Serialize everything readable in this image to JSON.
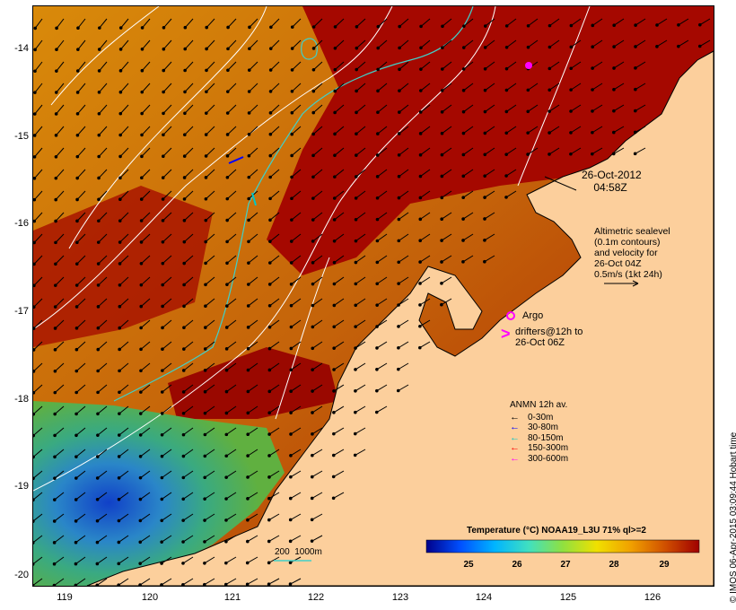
{
  "map": {
    "lat_ticks": [
      "-14",
      "-15",
      "-16",
      "-17",
      "-18",
      "-19",
      "-20"
    ],
    "lon_ticks": [
      "119",
      "120",
      "121",
      "122",
      "123",
      "124",
      "125",
      "126"
    ],
    "date_label": "26-Oct-2012\n    04:58Z",
    "altimetry_text": "Altimetric sealevel\n(0.1m contours)\nand velocity for\n26-Oct 04Z\n0.5m/s (1kt 24h)",
    "argo_label": "Argo",
    "drifters_text": "drifters@12h to\n26-Oct 06Z",
    "drifter_marker": ">",
    "scale_label": "200  1000m",
    "credit": "© IMOS 06-Apr-2015 03:09:44 Hobart time",
    "colors": {
      "land": "#fccf9c",
      "warm": "#a00000",
      "orange": "#cc6a00",
      "cool": "#2a9a8a",
      "contour": "#ffffff",
      "isobath": "#40d0c8"
    }
  },
  "anmn_legend": {
    "title": "ANMN 12h av.",
    "items": [
      {
        "label": "0-30m",
        "color": "#000000"
      },
      {
        "label": "30-80m",
        "color": "#0000ff"
      },
      {
        "label": "80-150m",
        "color": "#00c8c8"
      },
      {
        "label": "150-300m",
        "color": "#ff0000"
      },
      {
        "label": "300-600m",
        "color": "#ff00ff"
      }
    ]
  },
  "colorbar": {
    "title": "Temperature (°C) NOAA19_L3U 71% ql>=2",
    "ticks": [
      "25",
      "26",
      "27",
      "28",
      "29"
    ],
    "stops": [
      "#00008b",
      "#0050ff",
      "#00b4ff",
      "#40e0c0",
      "#90e040",
      "#f0e000",
      "#f0a000",
      "#d05000",
      "#a00000"
    ]
  }
}
